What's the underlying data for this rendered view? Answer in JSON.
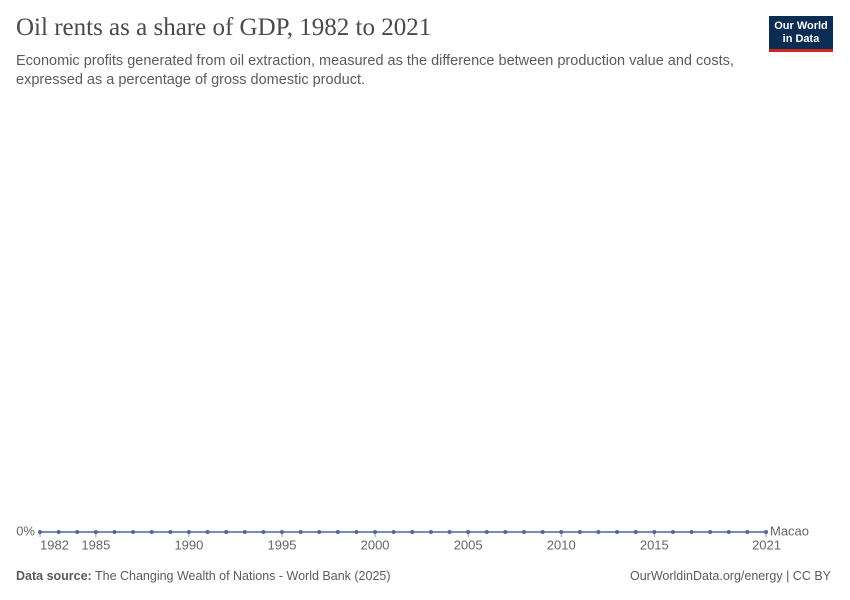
{
  "header": {
    "logo": [
      "Our World",
      "in Data"
    ]
  },
  "chart_data": {
    "type": "line",
    "title": "Oil rents as a share of GDP, 1982 to 2021",
    "subtitle": "Economic profits generated from oil extraction, measured as the difference between production value and costs, expressed as a percentage of gross domestic product.",
    "x": [
      1982,
      1983,
      1984,
      1985,
      1986,
      1987,
      1988,
      1989,
      1990,
      1991,
      1992,
      1993,
      1994,
      1995,
      1996,
      1997,
      1998,
      1999,
      2000,
      2001,
      2002,
      2003,
      2004,
      2005,
      2006,
      2007,
      2008,
      2009,
      2010,
      2011,
      2012,
      2013,
      2014,
      2015,
      2016,
      2017,
      2018,
      2019,
      2020,
      2021
    ],
    "series": [
      {
        "name": "Macao",
        "color": "#4c6a9c",
        "values": [
          0,
          0,
          0,
          0,
          0,
          0,
          0,
          0,
          0,
          0,
          0,
          0,
          0,
          0,
          0,
          0,
          0,
          0,
          0,
          0,
          0,
          0,
          0,
          0,
          0,
          0,
          0,
          0,
          0,
          0,
          0,
          0,
          0,
          0,
          0,
          0,
          0,
          0,
          0,
          0
        ]
      }
    ],
    "xlim": [
      1982,
      2021
    ],
    "xticks": [
      1982,
      1985,
      1990,
      1995,
      2000,
      2005,
      2010,
      2015,
      2021
    ],
    "ylim": [
      0,
      1
    ],
    "yticks": [
      {
        "value": 0,
        "label": "0%"
      }
    ],
    "grid": true
  },
  "footer": {
    "source_label": "Data source:",
    "source": "The Changing Wealth of Nations - World Bank (2025)",
    "license": "OurWorldinData.org/energy | CC BY"
  }
}
